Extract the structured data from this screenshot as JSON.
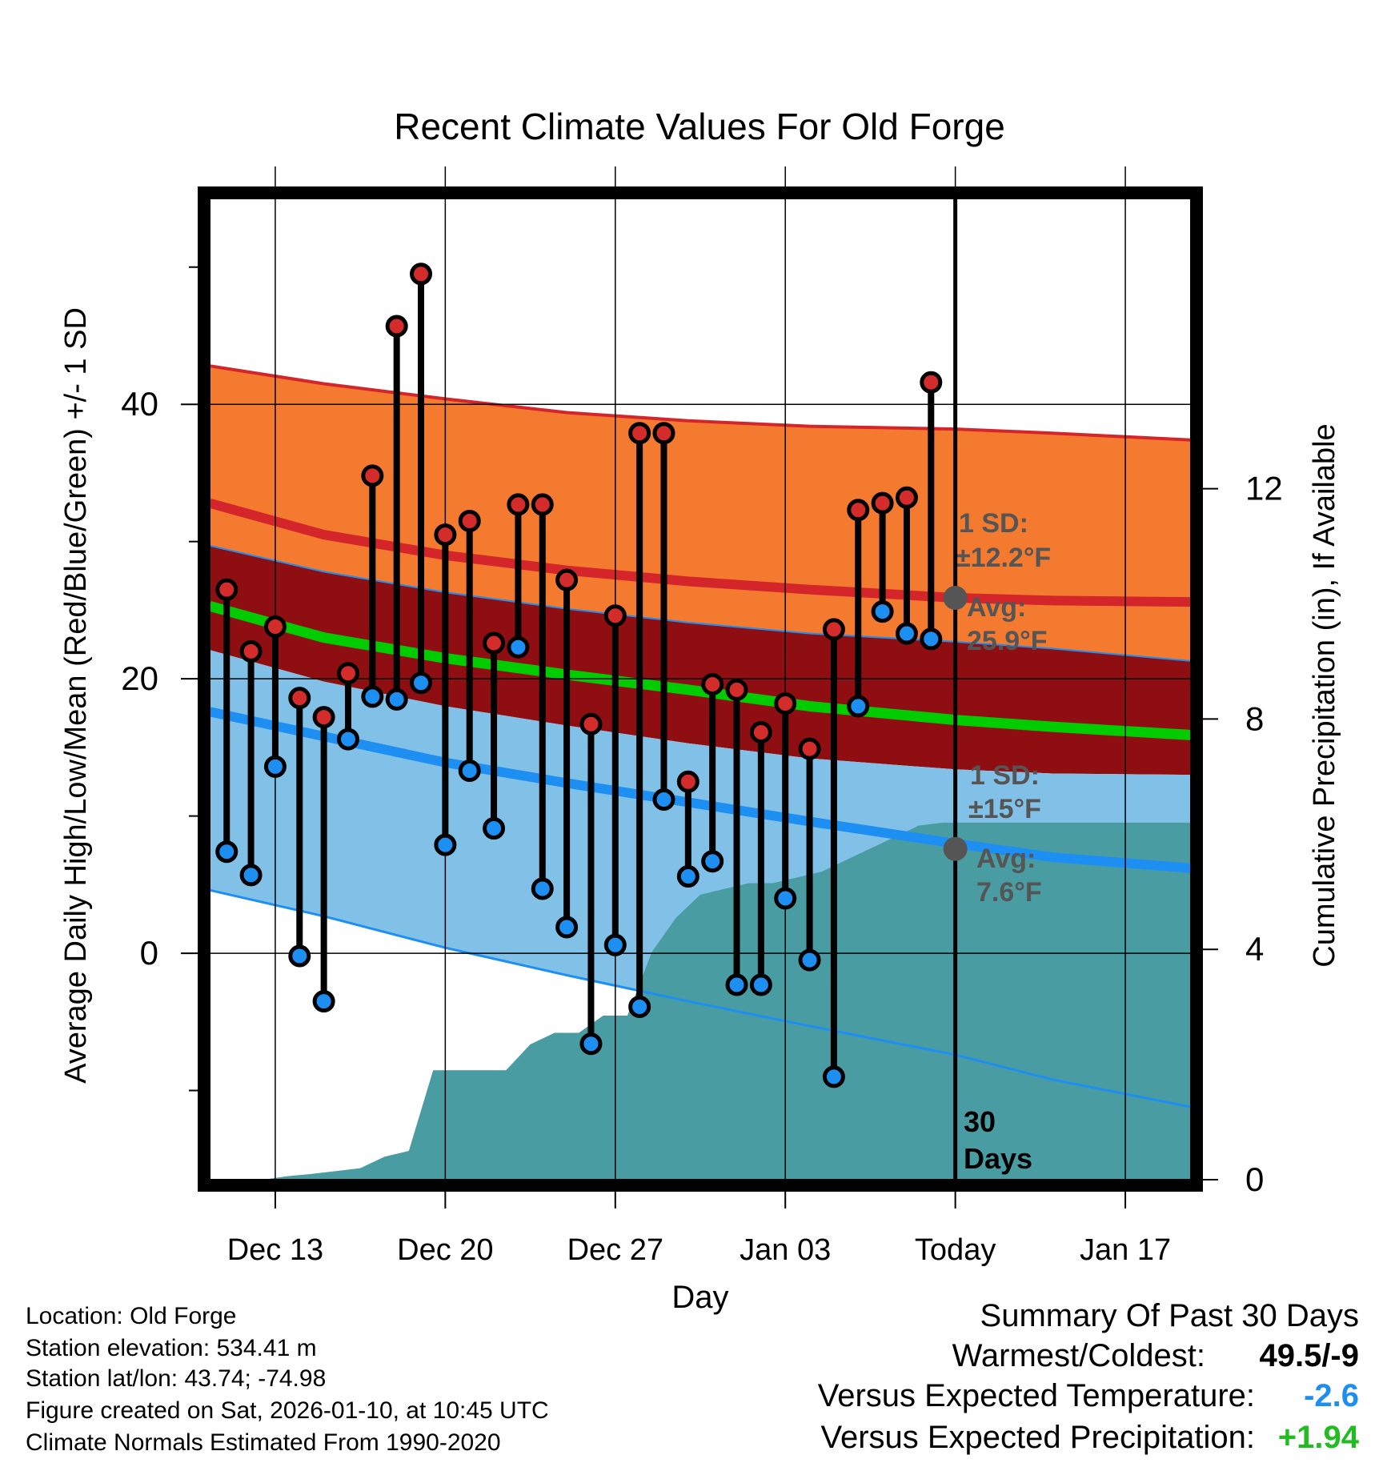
{
  "chart_data": {
    "type": "range-dumbbell with normal bands and cumulative precipitation area",
    "title": "Recent Climate Values For Old Forge",
    "xlabel": "Day",
    "ylabel_left": "Average Daily High/Low/Mean (Red/Blue/Green) +/- 1 SD",
    "ylabel_right": "Cumulative Precipitation (in), If Available",
    "x_ticks": [
      {
        "day": 3,
        "label": "Dec 13"
      },
      {
        "day": 10,
        "label": "Dec 20"
      },
      {
        "day": 17,
        "label": "Dec 27"
      },
      {
        "day": 24,
        "label": "Jan 03"
      },
      {
        "day": 31,
        "label": "Today"
      },
      {
        "day": 38,
        "label": "Jan 17"
      }
    ],
    "xlim": [
      0.3,
      40.7
    ],
    "ylim_left": [
      -16.5,
      55
    ],
    "y_ticks_left": [
      0,
      20,
      40
    ],
    "y_minor_left": [
      -10,
      10,
      30,
      50
    ],
    "ylim_right": [
      0,
      17.04
    ],
    "y_ticks_right": [
      0,
      4,
      8,
      12
    ],
    "normals": {
      "days": [
        0.3,
        5,
        10,
        15,
        20,
        25,
        31,
        35,
        40.7
      ],
      "high_plus_sd": [
        42.8,
        41.5,
        40.4,
        39.4,
        38.8,
        38.4,
        38.2,
        37.9,
        37.4
      ],
      "high_mean": [
        32.8,
        30.5,
        29.0,
        27.9,
        27.1,
        26.5,
        25.9,
        25.7,
        25.6
      ],
      "mean_plus_sd": [
        29.7,
        27.8,
        26.3,
        25.1,
        24.1,
        23.3,
        22.7,
        22.2,
        21.3
      ],
      "mean": [
        25.3,
        23.0,
        21.5,
        20.3,
        19.2,
        18.0,
        17.0,
        16.5,
        15.9
      ],
      "low_plus_sd": [
        22.1,
        19.8,
        18.0,
        16.6,
        15.3,
        14.2,
        13.4,
        13.1,
        13.0
      ],
      "low_mean": [
        17.6,
        15.8,
        13.9,
        12.4,
        11.0,
        9.6,
        8.0,
        7.0,
        6.2
      ],
      "low_minus_sd": [
        4.6,
        2.7,
        0.4,
        -1.6,
        -3.5,
        -5.3,
        -7.4,
        -9.2,
        -11.2
      ]
    },
    "series": [
      {
        "name": "High",
        "values": [
          26.5,
          22.0,
          23.8,
          18.6,
          17.2,
          20.4,
          34.8,
          45.7,
          49.5,
          30.5,
          31.5,
          22.6,
          32.7,
          32.7,
          27.2,
          16.7,
          24.6,
          37.9,
          37.9,
          12.5,
          19.6,
          19.2,
          16.1,
          18.2,
          14.9,
          23.6,
          32.3,
          32.8,
          33.2,
          41.6
        ]
      },
      {
        "name": "Low",
        "values": [
          7.4,
          5.7,
          13.6,
          -0.2,
          -3.5,
          15.6,
          18.7,
          18.5,
          19.7,
          7.9,
          13.3,
          9.1,
          22.3,
          4.7,
          1.9,
          -6.6,
          0.6,
          -3.9,
          11.2,
          5.6,
          6.7,
          -2.3,
          -2.3,
          4.0,
          -0.5,
          -9.0,
          18.0,
          24.9,
          23.3,
          22.9
        ]
      },
      {
        "name": "Cumulative Precipitation",
        "days": [
          0.3,
          2.5,
          3.5,
          4.5,
          5.5,
          6.5,
          7.5,
          8.5,
          9.5,
          10.5,
          11.5,
          12.5,
          13.5,
          14.5,
          15.5,
          16.5,
          17.5,
          18.5,
          19.5,
          20.5,
          21.5,
          22.5,
          23.5,
          24.5,
          25.5,
          26.5,
          27.5,
          28.5,
          29.5,
          30.5,
          40.7
        ],
        "values": [
          0,
          0,
          0.06,
          0.1,
          0.15,
          0.2,
          0.4,
          0.5,
          1.9,
          1.9,
          1.9,
          1.9,
          2.35,
          2.55,
          2.55,
          2.85,
          2.85,
          3.95,
          4.55,
          4.95,
          5.05,
          5.15,
          5.15,
          5.25,
          5.35,
          5.55,
          5.75,
          5.95,
          6.15,
          6.2,
          6.2
        ]
      }
    ],
    "today_label": [
      "30",
      "Days"
    ],
    "annotations": {
      "high": {
        "line1": "1 SD:",
        "line2": "±12.2°F",
        "avg_label": "Avg:",
        "avg_value": "25.9°F",
        "avg": 25.9
      },
      "low": {
        "line1": "1 SD:",
        "line2": "±15°F",
        "avg_label": "Avg:",
        "avg_value": "7.6°F",
        "avg": 7.6
      }
    },
    "colors": {
      "high_sd_band": "#f47a2f",
      "mean_sd_band": "#8f0e12",
      "low_sd_band": "#82c1e7",
      "high_line": "#d4262a",
      "mean_line": "#00cc00",
      "low_line": "#1e8ff2",
      "high_dot": "#d42b2b",
      "low_dot": "#1e8ff2",
      "precip": "#4a9ca3",
      "annotation": "#555555"
    }
  },
  "footer": {
    "location": "Location: Old Forge",
    "elevation": "Station elevation: 534.41 m",
    "latlon": "Station lat/lon: 43.74; -74.98",
    "created": "Figure created on Sat, 2026-01-10, at 10:45 UTC",
    "normals": "Climate Normals Estimated From 1990-2020"
  },
  "summary": {
    "title": "Summary Of Past 30 Days",
    "warmest_label": "Warmest/Coldest:",
    "warmest_value": "49.5/-9",
    "temp_label": "Versus Expected Temperature:",
    "temp_value": "-2.6",
    "temp_color": "#1e8ff2",
    "precip_label": "Versus Expected Precipitation:",
    "precip_value": "+1.94",
    "precip_color": "#22bb22"
  }
}
